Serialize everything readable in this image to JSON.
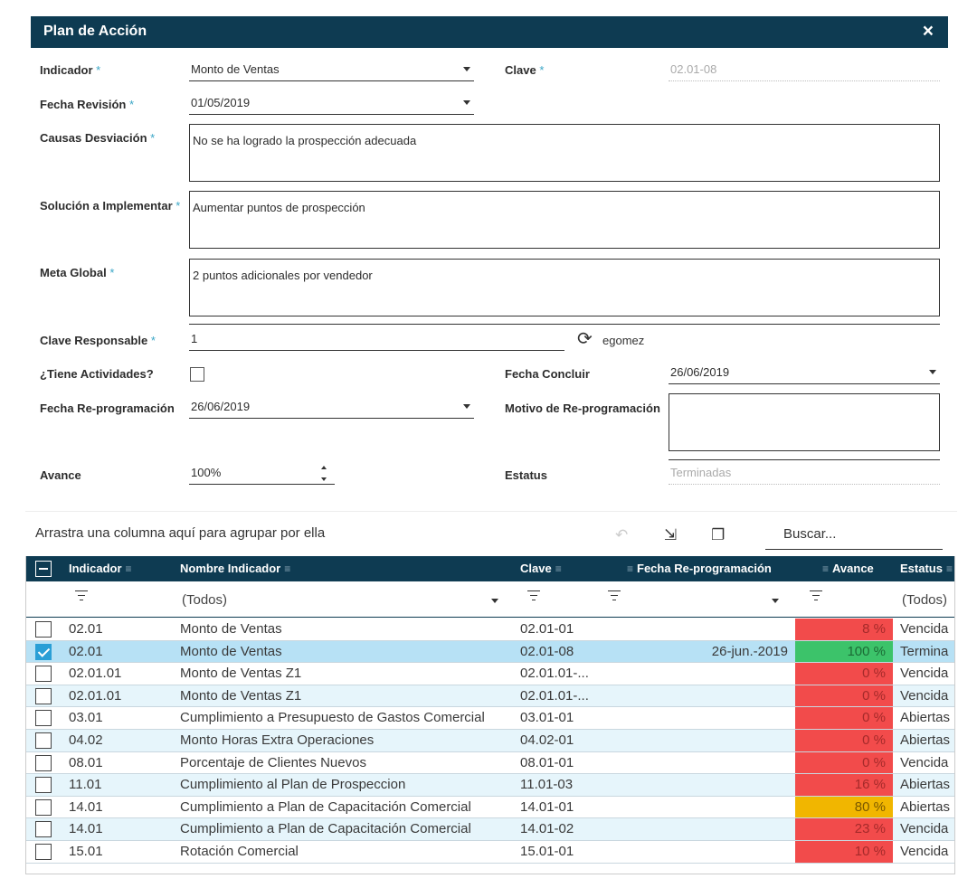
{
  "dialog": {
    "title": "Plan de Acción",
    "close": "×"
  },
  "form": {
    "indicador": {
      "label": "Indicador",
      "value": "Monto de Ventas"
    },
    "clave": {
      "label": "Clave",
      "value": "02.01-08"
    },
    "fecha_revision": {
      "label": "Fecha Revisión",
      "value": "01/05/2019"
    },
    "causas": {
      "label": "Causas Desviación",
      "value": "No se ha logrado la prospección adecuada"
    },
    "solucion": {
      "label": "Solución a Implementar",
      "value": "Aumentar puntos de prospección"
    },
    "meta": {
      "label": "Meta Global",
      "value": "2 puntos adicionales por vendedor"
    },
    "responsable": {
      "label": "Clave Responsable",
      "value": "1",
      "user": "egomez"
    },
    "actividades": {
      "label": "¿Tiene Actividades?"
    },
    "fecha_concluir": {
      "label": "Fecha Concluir",
      "value": "26/06/2019"
    },
    "fecha_reprog": {
      "label": "Fecha Re-programación",
      "value": "26/06/2019"
    },
    "motivo": {
      "label": "Motivo de Re-programación",
      "value": ""
    },
    "avance": {
      "label": "Avance",
      "value": "100%"
    },
    "estatus": {
      "label": "Estatus",
      "value": "Terminadas"
    },
    "required_mark": "*"
  },
  "grid": {
    "group_hint": "Arrastra una columna aquí para agrupar por ella",
    "search_placeholder": "Buscar...",
    "columns": {
      "indicador": "Indicador",
      "nombre": "Nombre Indicador",
      "clave": "Clave",
      "fecha": "Fecha Re-programación",
      "avance": "Avance",
      "estatus": "Estatus"
    },
    "filters": {
      "nombre": "(Todos)",
      "estatus": "(Todos)"
    },
    "rows": [
      {
        "indicador": "02.01",
        "nombre": "Monto de Ventas",
        "clave": "02.01-01",
        "fecha": "",
        "avance": "8 %",
        "color": "red",
        "estatus": "Vencida"
      },
      {
        "indicador": "02.01",
        "nombre": "Monto de Ventas",
        "clave": "02.01-08",
        "fecha": "26-jun.-2019",
        "avance": "100 %",
        "color": "green",
        "estatus": "Termina"
      },
      {
        "indicador": "02.01.01",
        "nombre": "Monto de Ventas Z1",
        "clave": "02.01.01-...",
        "fecha": "",
        "avance": "0 %",
        "color": "red",
        "estatus": "Vencida"
      },
      {
        "indicador": "02.01.01",
        "nombre": "Monto de Ventas Z1",
        "clave": "02.01.01-...",
        "fecha": "",
        "avance": "0 %",
        "color": "red",
        "estatus": "Vencida"
      },
      {
        "indicador": "03.01",
        "nombre": "Cumplimiento a Presupuesto de Gastos Comercial",
        "clave": "03.01-01",
        "fecha": "",
        "avance": "0 %",
        "color": "red",
        "estatus": "Abiertas"
      },
      {
        "indicador": "04.02",
        "nombre": "Monto Horas Extra Operaciones",
        "clave": "04.02-01",
        "fecha": "",
        "avance": "0 %",
        "color": "red",
        "estatus": "Abiertas"
      },
      {
        "indicador": "08.01",
        "nombre": "Porcentaje de Clientes Nuevos",
        "clave": "08.01-01",
        "fecha": "",
        "avance": "0 %",
        "color": "red",
        "estatus": "Vencida"
      },
      {
        "indicador": "11.01",
        "nombre": "Cumplimiento al Plan de Prospeccion",
        "clave": "11.01-03",
        "fecha": "",
        "avance": "16 %",
        "color": "red",
        "estatus": "Abiertas"
      },
      {
        "indicador": "14.01",
        "nombre": "Cumplimiento a Plan de Capacitación Comercial",
        "clave": "14.01-01",
        "fecha": "",
        "avance": "80 %",
        "color": "yellow",
        "estatus": "Abiertas"
      },
      {
        "indicador": "14.01",
        "nombre": "Cumplimiento a Plan de Capacitación Comercial",
        "clave": "14.01-02",
        "fecha": "",
        "avance": "23 %",
        "color": "red",
        "estatus": "Vencida"
      },
      {
        "indicador": "15.01",
        "nombre": "Rotación Comercial",
        "clave": "15.01-01",
        "fecha": "",
        "avance": "10 %",
        "color": "red",
        "estatus": "Vencida"
      }
    ],
    "selected_row": 1
  }
}
